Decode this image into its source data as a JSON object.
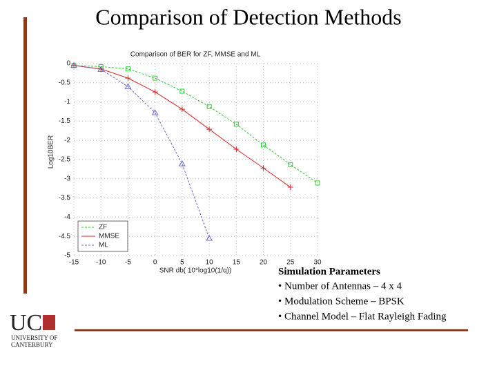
{
  "title": "Comparison of Detection Methods",
  "chart_data": {
    "type": "line",
    "title": "Comparison of BER for ZF, MMSE and ML",
    "x_label": "SNR db( 10*log10(1/q))",
    "y_label": "Log10BER",
    "x": [
      -15,
      -10,
      -5,
      0,
      5,
      10,
      15,
      20,
      25,
      30
    ],
    "series": [
      {
        "name": "ZF",
        "color": "#33cc33",
        "marker": "square",
        "values": [
          -0.05,
          -0.08,
          -0.14,
          -0.38,
          -0.72,
          -1.12,
          -1.58,
          -2.12,
          -2.63,
          -3.11
        ]
      },
      {
        "name": "MMSE",
        "color": "#dd2222",
        "marker": "plus",
        "values": [
          -0.05,
          -0.14,
          -0.38,
          -0.74,
          -1.19,
          -1.71,
          -2.23,
          -2.72,
          -3.22,
          null
        ]
      },
      {
        "name": "ML",
        "color": "#6666cc",
        "marker": "triangle",
        "values": [
          -0.05,
          -0.15,
          -0.6,
          -1.28,
          -2.61,
          -4.55,
          null,
          null,
          null,
          null
        ]
      }
    ],
    "xlim": [
      -15,
      30
    ],
    "xticks": [
      -15,
      -10,
      -5,
      0,
      5,
      10,
      15,
      20,
      25,
      30
    ],
    "ylim": [
      -5,
      0
    ],
    "yticks": [
      0,
      -0.5,
      -1,
      -1.5,
      -2,
      -2.5,
      -3,
      -3.5,
      -4,
      -4.5,
      -5
    ],
    "grid": true,
    "legend": "lower left"
  },
  "params": {
    "heading": "Simulation Parameters",
    "items": [
      "• Number of Antennas – 4 x 4",
      "• Modulation Scheme – BPSK",
      "• Channel Model – Flat Rayleigh Fading"
    ]
  },
  "logo": {
    "mark": "UC",
    "lines": [
      "UNIVERSITY OF",
      "CANTERBURY"
    ]
  }
}
